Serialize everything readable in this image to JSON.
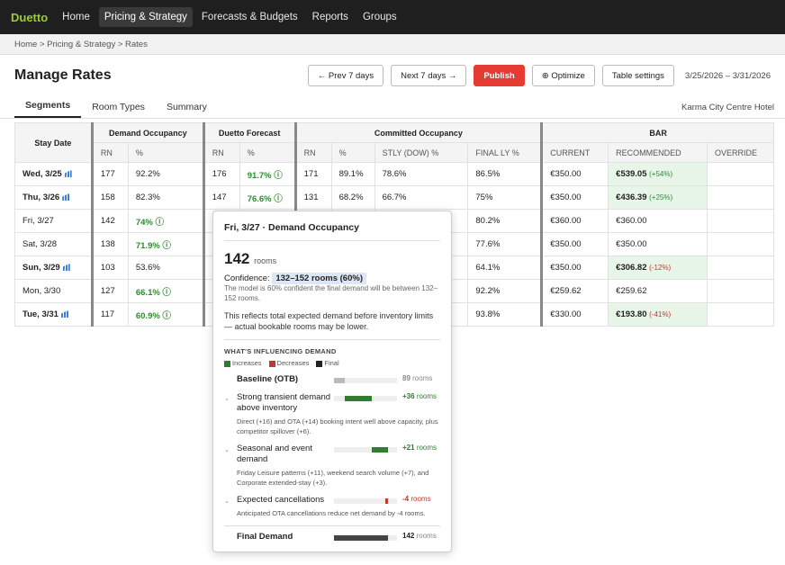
{
  "nav": {
    "brand": "Duetto",
    "items": [
      "Home",
      "Pricing & Strategy",
      "Forecasts & Budgets",
      "Reports",
      "Groups"
    ]
  },
  "breadcrumb": "Home > Pricing & Strategy > Rates",
  "header": {
    "title": "Manage Rates",
    "prev": "← Prev 7 days",
    "next": "Next 7 days →",
    "publish": "Publish",
    "optimize": "⊕ Optimize",
    "table_settings": "Table settings",
    "date_range": "3/25/2026 – 3/31/2026"
  },
  "tabs": [
    "Segments",
    "Room Types",
    "Summary"
  ],
  "hotel": "Karma City Centre Hotel",
  "table": {
    "groups": {
      "stay_date": "Stay Date",
      "demand": "Demand Occupancy",
      "forecast": "Duetto Forecast",
      "committed": "Committed Occupancy",
      "bar": "BAR"
    },
    "sub": {
      "rn": "RN",
      "pct": "%",
      "stly": "STLY (DOW) %",
      "final_ly": "FINAL LY %",
      "current": "CURRENT",
      "recommended": "RECOMMENDED",
      "override": "OVERRIDE"
    },
    "rows": [
      {
        "date": "Wed, 3/25",
        "d_rn": "177",
        "d_pct": "92.2%",
        "f_rn": "176",
        "f_pct": "91.7% ⓘ",
        "c_rn": "171",
        "c_pct": "89.1%",
        "stly": "78.6%",
        "final_ly": "86.5%",
        "current": "€350.00",
        "rec": "€539.05",
        "chg": "(+54%)"
      },
      {
        "date": "Thu, 3/26",
        "d_rn": "158",
        "d_pct": "82.3%",
        "f_rn": "147",
        "f_pct": "76.6% ⓘ",
        "c_rn": "131",
        "c_pct": "68.2%",
        "stly": "66.7%",
        "final_ly": "75%",
        "current": "€350.00",
        "rec": "€436.39",
        "chg": "(+25%)"
      },
      {
        "date": "Fri, 3/27",
        "d_rn": "142",
        "d_pct": "74% ⓘ",
        "final_ly": "80.2%",
        "current": "€360.00",
        "rec": "€360.00",
        "chg": ""
      },
      {
        "date": "Sat, 3/28",
        "d_rn": "138",
        "d_pct": "71.9% ⓘ",
        "final_ly": "77.6%",
        "current": "€350.00",
        "rec": "€350.00",
        "chg": ""
      },
      {
        "date": "Sun, 3/29",
        "d_rn": "103",
        "d_pct": "53.6%",
        "final_ly": "64.1%",
        "current": "€350.00",
        "rec": "€306.82",
        "chg": "(-12%)"
      },
      {
        "date": "Mon, 3/30",
        "d_rn": "127",
        "d_pct": "66.1% ⓘ",
        "final_ly": "92.2%",
        "current": "€259.62",
        "rec": "€259.62",
        "chg": ""
      },
      {
        "date": "Tue, 3/31",
        "d_rn": "117",
        "d_pct": "60.9% ⓘ",
        "final_ly": "93.8%",
        "current": "€330.00",
        "rec": "€193.80",
        "chg": "(-41%)"
      }
    ]
  },
  "popup": {
    "title": "Fri, 3/27 · Demand Occupancy",
    "value": "142",
    "unit": "rooms",
    "conf_label": "Confidence:",
    "conf_range": "132–152 rooms (60%)",
    "conf_desc": "The model is 60% confident the final demand will be between 132–152 rooms.",
    "note": "This reflects total expected demand before inventory limits — actual bookable rooms may be lower.",
    "section": "WHAT'S INFLUENCING DEMAND",
    "legend": [
      "Increases",
      "Decreases",
      "Final"
    ],
    "baseline": {
      "label": "Baseline (OTB)",
      "value": "89",
      "unit": "rooms"
    },
    "drivers": [
      {
        "label": "Strong transient demand above inventory",
        "value": "+36",
        "unit": "rooms",
        "desc": "Direct (+16) and OTA (+14) booking intent well above capacity, plus competitor spillover (+6)."
      },
      {
        "label": "Seasonal and event demand",
        "value": "+21",
        "unit": "rooms",
        "desc": "Friday Leisure patterns (+11), weekend search volume (+7), and Corporate extended-stay (+3)."
      },
      {
        "label": "Expected cancellations",
        "value": "-4",
        "unit": "rooms",
        "desc": "Anticipated OTA cancellations reduce net demand by -4 rooms."
      }
    ],
    "final": {
      "label": "Final Demand",
      "value": "142",
      "unit": "rooms"
    }
  },
  "colors": {
    "increase": "#2e7d32",
    "decrease": "#c0392b",
    "final": "#222222",
    "brand": "#9ccb3a",
    "publish": "#e63b32"
  }
}
